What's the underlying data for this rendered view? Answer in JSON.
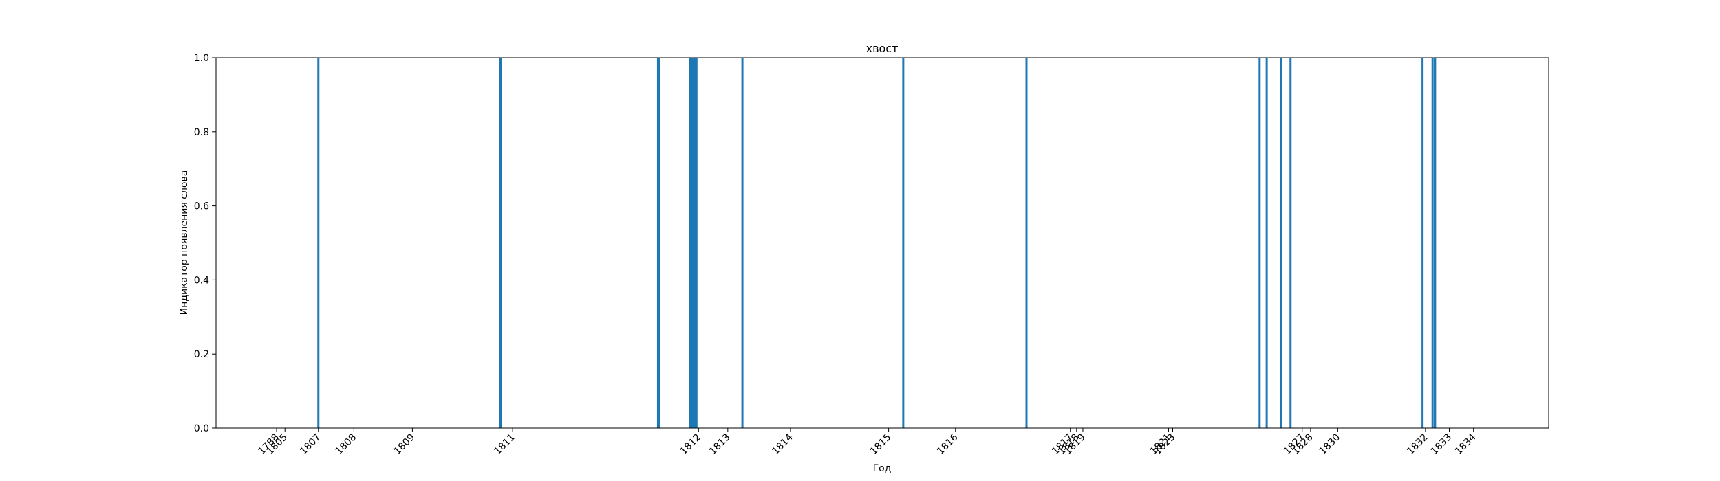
{
  "chart_data": {
    "type": "bar",
    "title": "хвост",
    "xlabel": "Год",
    "ylabel": "Индикатор появления слова",
    "bar_color": "#1f77b4",
    "ylim": [
      0,
      1.0
    ],
    "y_ticks": [
      0.0,
      0.2,
      0.4,
      0.6,
      0.8,
      1.0
    ],
    "y_tick_labels": [
      "0.0",
      "0.2",
      "0.4",
      "0.6",
      "0.8",
      "1.0"
    ],
    "x_ticks": [
      {
        "label": "1788",
        "x": 0.55
      },
      {
        "label": "1805",
        "x": 0.75
      },
      {
        "label": "1807",
        "x": 1.55
      },
      {
        "label": "1808",
        "x": 2.4
      },
      {
        "label": "1809",
        "x": 3.8
      },
      {
        "label": "1811",
        "x": 6.2
      },
      {
        "label": "1812",
        "x": 10.65
      },
      {
        "label": "1813",
        "x": 11.35
      },
      {
        "label": "1814",
        "x": 12.85
      },
      {
        "label": "1815",
        "x": 15.2
      },
      {
        "label": "1816",
        "x": 16.8
      },
      {
        "label": "1817",
        "x": 19.55
      },
      {
        "label": "1818",
        "x": 19.7
      },
      {
        "label": "1819",
        "x": 19.85
      },
      {
        "label": "1821",
        "x": 21.9
      },
      {
        "label": "1823",
        "x": 22.0
      },
      {
        "label": "1827",
        "x": 25.1
      },
      {
        "label": "1828",
        "x": 25.3
      },
      {
        "label": "1830",
        "x": 25.95
      },
      {
        "label": "1832",
        "x": 28.05
      },
      {
        "label": "1833",
        "x": 28.62
      },
      {
        "label": "1834",
        "x": 29.2
      }
    ],
    "xlim": [
      -0.9,
      31.0
    ],
    "x": [
      1.55,
      5.9,
      5.92,
      9.68,
      9.71,
      10.45,
      10.48,
      10.51,
      10.54,
      10.57,
      10.6,
      11.7,
      15.55,
      18.5,
      24.08,
      24.25,
      24.6,
      24.82,
      27.98,
      28.22,
      28.28
    ],
    "values": [
      1,
      1,
      1,
      1,
      1,
      1,
      1,
      1,
      1,
      1,
      1,
      1,
      1,
      1,
      1,
      1,
      1,
      1,
      1,
      1,
      1
    ]
  }
}
